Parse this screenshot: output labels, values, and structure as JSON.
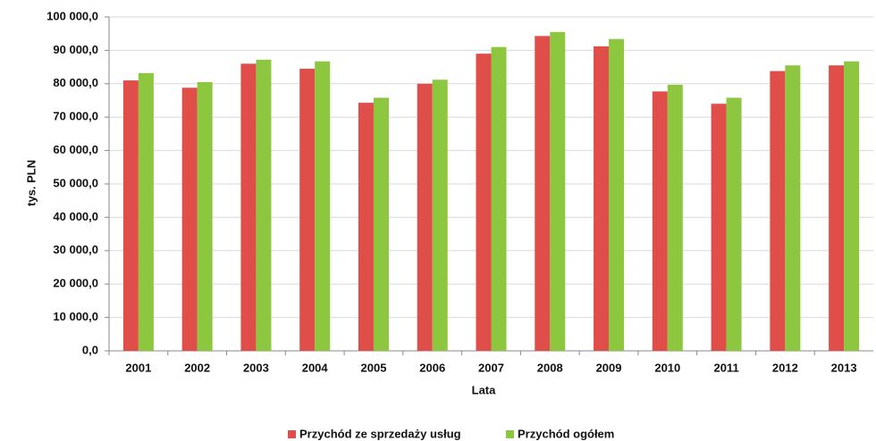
{
  "chart_data": {
    "type": "bar",
    "x_label": "Lata",
    "y_label": "tys. PLN",
    "categories": [
      "2001",
      "2002",
      "2003",
      "2004",
      "2005",
      "2006",
      "2007",
      "2008",
      "2009",
      "2010",
      "2011",
      "2012",
      "2013"
    ],
    "series": [
      {
        "name": "Przychód ze sprzedaży usług",
        "color": "#e04e4a",
        "values": [
          81000,
          78800,
          86000,
          84500,
          74300,
          80000,
          89000,
          94300,
          91200,
          77700,
          74000,
          83800,
          85500
        ]
      },
      {
        "name": "Przychód ogółem",
        "color": "#8dc63f",
        "values": [
          83200,
          80500,
          87200,
          86700,
          75800,
          81200,
          91000,
          95500,
          93400,
          79700,
          75800,
          85500,
          86700
        ]
      }
    ],
    "ylim": [
      0,
      100000
    ],
    "yticks": [
      {
        "value": 0,
        "label": "0,0"
      },
      {
        "value": 10000,
        "label": "10 000,0"
      },
      {
        "value": 20000,
        "label": "20 000,0"
      },
      {
        "value": 30000,
        "label": "30 000,0"
      },
      {
        "value": 40000,
        "label": "40 000,0"
      },
      {
        "value": 50000,
        "label": "50 000,0"
      },
      {
        "value": 60000,
        "label": "60 000,0"
      },
      {
        "value": 70000,
        "label": "70 000,0"
      },
      {
        "value": 80000,
        "label": "80 000,0"
      },
      {
        "value": 90000,
        "label": "90 000,0"
      },
      {
        "value": 100000,
        "label": "100 000,0"
      }
    ],
    "grid": true,
    "legend": "bottom"
  }
}
